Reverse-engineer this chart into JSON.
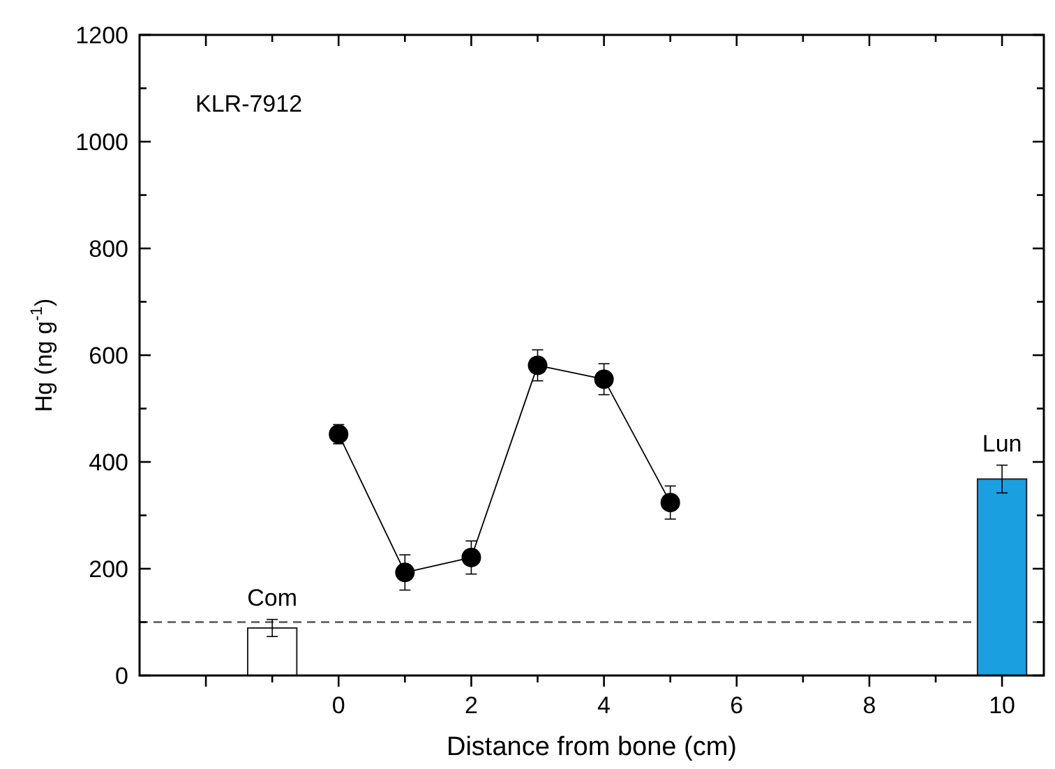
{
  "chart_data": {
    "type": "line",
    "title": "KLR-7912",
    "xlabel": "Distance from bone (cm)",
    "ylabel": "Hg (ng g$^{-1}$)",
    "xlim": [
      -3,
      10.63
    ],
    "xticks": [
      {
        "value": -2,
        "label": null
      },
      {
        "value": -1,
        "label": null
      },
      0,
      {
        "value": 1,
        "label": null
      },
      2,
      {
        "value": 3,
        "label": null
      },
      4,
      {
        "value": 5,
        "label": null
      },
      6,
      {
        "value": 7,
        "label": null
      },
      8,
      {
        "value": 9,
        "label": null
      },
      10
    ],
    "ylim": [
      0,
      1200
    ],
    "yticks": [
      0,
      {
        "value": 100,
        "label": null
      },
      200,
      {
        "value": 300,
        "label": null
      },
      400,
      {
        "value": 500,
        "label": null
      },
      600,
      {
        "value": 700,
        "label": null
      },
      800,
      {
        "value": 900,
        "label": null
      },
      1000,
      {
        "value": 1100,
        "label": null
      },
      1200
    ],
    "series": [
      {
        "name": "Com",
        "type": "bar",
        "x": [
          -1
        ],
        "values": [
          89
        ],
        "errors": [
          16
        ],
        "color": "#ffffff"
      },
      {
        "x": [
          0,
          1,
          2,
          3,
          4,
          5
        ],
        "values": [
          452,
          193,
          221,
          581,
          555,
          324
        ],
        "errors": [
          18,
          33,
          31,
          29,
          29,
          31
        ],
        "color": "#000000",
        "marker": "circle",
        "line_style": "solid"
      },
      {
        "name": "Lun",
        "type": "bar",
        "x": [
          10
        ],
        "values": [
          368
        ],
        "errors": [
          26
        ],
        "color": "#1a9fe0"
      }
    ],
    "ref_lines": [
      {
        "axis": "y",
        "value": 100,
        "label": null,
        "line_style": "dashed",
        "color": "#555555"
      }
    ],
    "grid": false
  }
}
